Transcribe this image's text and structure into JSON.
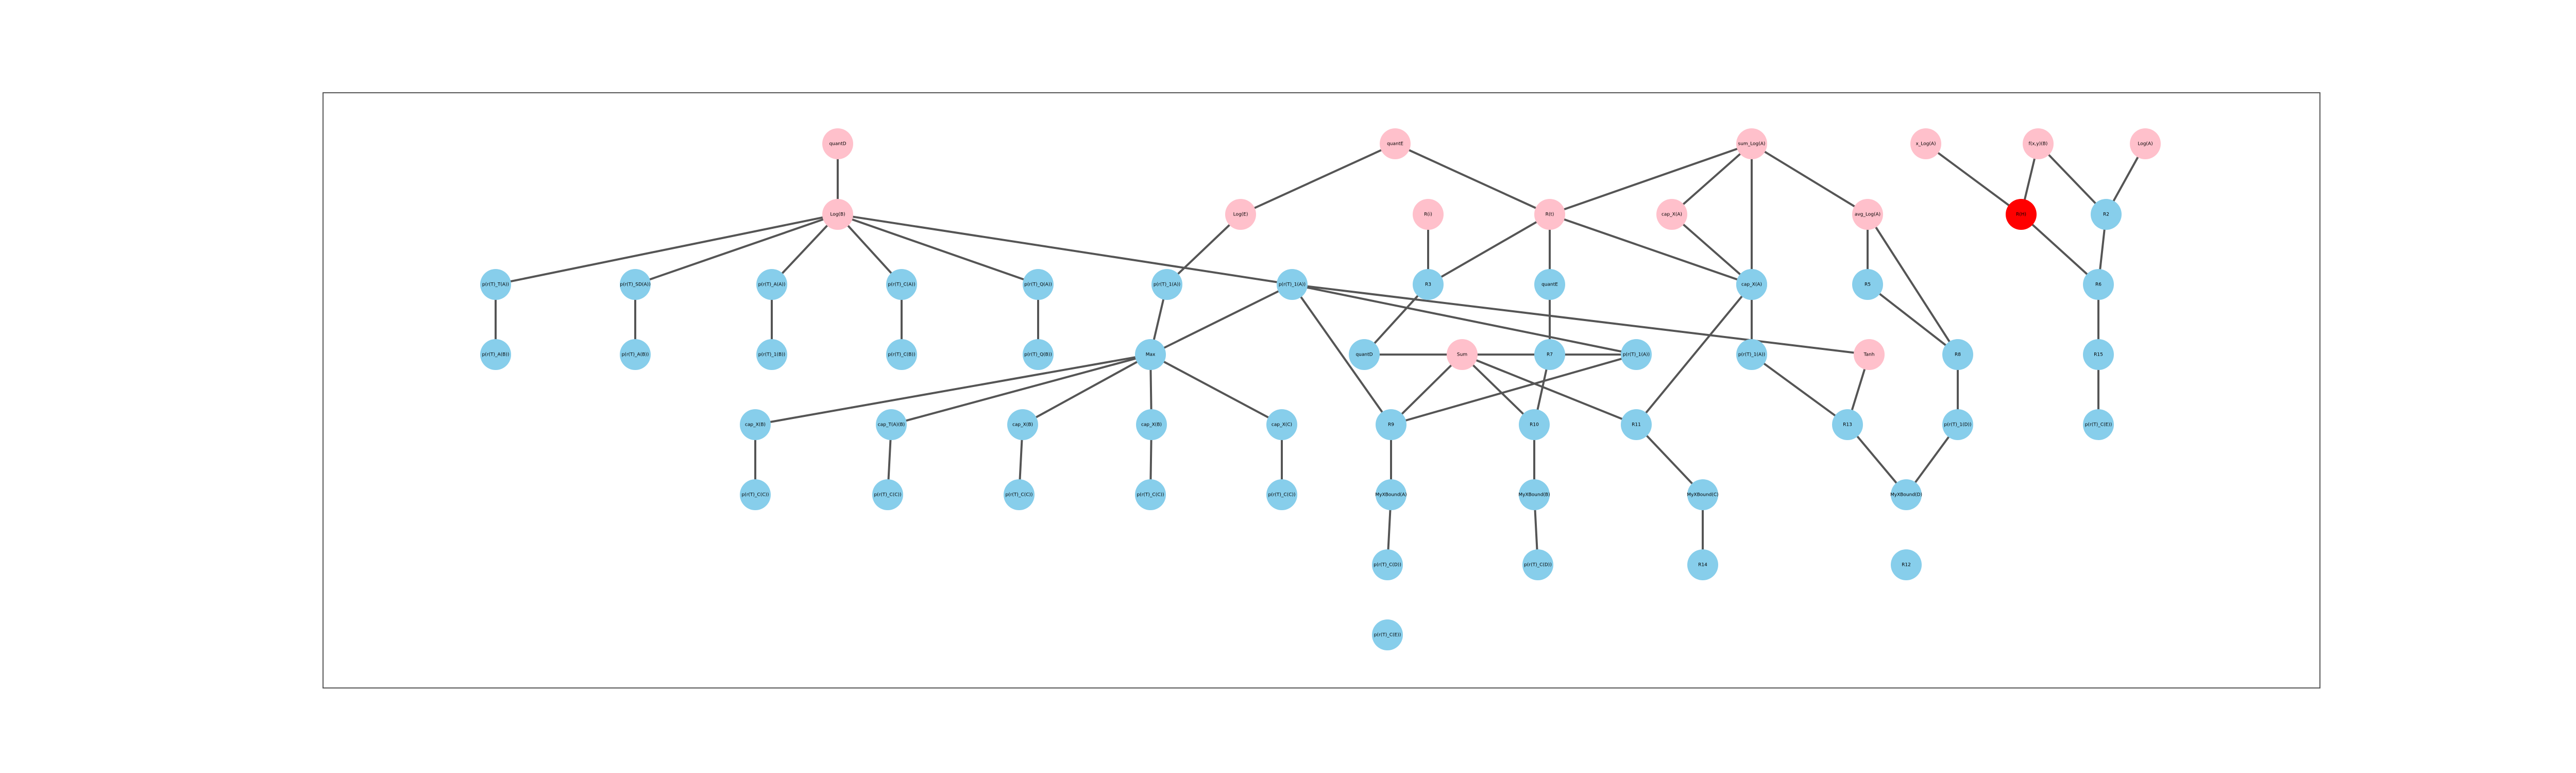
{
  "colors": {
    "input_node": "#ffc0cb",
    "intermediate_node": "#87ceeb",
    "output_node": "#ff0000",
    "edge": "#555555",
    "frame": "#555555"
  },
  "nodes": [
    {
      "id": "n1",
      "label": "quantD",
      "kind": "input_node"
    },
    {
      "id": "n2",
      "label": "Log(B)",
      "kind": "input_node"
    },
    {
      "id": "n3",
      "label": "quantE",
      "kind": "input_node"
    },
    {
      "id": "n4",
      "label": "Log(E)",
      "kind": "input_node"
    },
    {
      "id": "n5",
      "label": "R(i)",
      "kind": "input_node"
    },
    {
      "id": "n6",
      "label": "R(t)",
      "kind": "input_node"
    },
    {
      "id": "n7",
      "label": "sum_Log(A)",
      "kind": "input_node"
    },
    {
      "id": "n8",
      "label": "cap_X(A)",
      "kind": "input_node"
    },
    {
      "id": "n9",
      "label": "avg_Log(A)",
      "kind": "input_node"
    },
    {
      "id": "n10",
      "label": "x_Log(A)",
      "kind": "input_node"
    },
    {
      "id": "n11",
      "label": "f(x,y)(B)",
      "kind": "input_node"
    },
    {
      "id": "n12",
      "label": "Log(A)",
      "kind": "input_node"
    },
    {
      "id": "n13",
      "label": "R(H)",
      "kind": "output_node"
    },
    {
      "id": "n14",
      "label": "R2",
      "kind": "intermediate_node"
    },
    {
      "id": "n15",
      "label": "p(r(T)_T(A))",
      "kind": "intermediate_node"
    },
    {
      "id": "n16",
      "label": "p(r(T)_SD(A))",
      "kind": "intermediate_node"
    },
    {
      "id": "n17",
      "label": "p(r(T)_A(A))",
      "kind": "intermediate_node"
    },
    {
      "id": "n18",
      "label": "p(r(T)_C(A))",
      "kind": "intermediate_node"
    },
    {
      "id": "n19",
      "label": "p(r(T)_Q(A))",
      "kind": "intermediate_node"
    },
    {
      "id": "n20",
      "label": "p(r(T)_1(A))",
      "kind": "intermediate_node"
    },
    {
      "id": "n21",
      "label": "p(r(T)_1(A))",
      "kind": "intermediate_node"
    },
    {
      "id": "n22",
      "label": "R3",
      "kind": "intermediate_node"
    },
    {
      "id": "n23",
      "label": "quantE",
      "kind": "intermediate_node"
    },
    {
      "id": "n24",
      "label": "R4",
      "kind": "intermediate_node"
    },
    {
      "id": "n25",
      "label": "cap_X(A)",
      "kind": "intermediate_node"
    },
    {
      "id": "n26",
      "label": "R5",
      "kind": "intermediate_node"
    },
    {
      "id": "n27",
      "label": "p(r(T)_A(B))",
      "kind": "intermediate_node"
    },
    {
      "id": "n28",
      "label": "p(r(T)_A(B))",
      "kind": "intermediate_node"
    },
    {
      "id": "n29",
      "label": "p(r(T)_1(B))",
      "kind": "intermediate_node"
    },
    {
      "id": "n30",
      "label": "p(r(T)_C(B))",
      "kind": "intermediate_node"
    },
    {
      "id": "n31",
      "label": "p(r(T)_Q(B))",
      "kind": "intermediate_node"
    },
    {
      "id": "n32",
      "label": "Max",
      "kind": "intermediate_node"
    },
    {
      "id": "n33",
      "label": "quantD",
      "kind": "intermediate_node"
    },
    {
      "id": "n34",
      "label": "Sum",
      "kind": "input_node"
    },
    {
      "id": "n35",
      "label": "R6",
      "kind": "intermediate_node"
    },
    {
      "id": "n36",
      "label": "R7",
      "kind": "intermediate_node"
    },
    {
      "id": "n37",
      "label": "p(r(T)_1(A))",
      "kind": "intermediate_node"
    },
    {
      "id": "n38",
      "label": "Tanh",
      "kind": "input_node"
    },
    {
      "id": "n39",
      "label": "R8",
      "kind": "intermediate_node"
    },
    {
      "id": "n40",
      "label": "cap_X(B)",
      "kind": "intermediate_node"
    },
    {
      "id": "n41",
      "label": "cap_T(A)(B)",
      "kind": "intermediate_node"
    },
    {
      "id": "n42",
      "label": "cap_X(B)",
      "kind": "intermediate_node"
    },
    {
      "id": "n43",
      "label": "cap_X(B)",
      "kind": "intermediate_node"
    },
    {
      "id": "n44",
      "label": "cap_X(C)",
      "kind": "intermediate_node"
    },
    {
      "id": "n45",
      "label": "R9",
      "kind": "intermediate_node"
    },
    {
      "id": "n46",
      "label": "R10",
      "kind": "intermediate_node"
    },
    {
      "id": "n47",
      "label": "R11",
      "kind": "intermediate_node"
    },
    {
      "id": "n48",
      "label": "R12",
      "kind": "intermediate_node"
    },
    {
      "id": "n49",
      "label": "p(r(T)_1(A))",
      "kind": "intermediate_node"
    },
    {
      "id": "n50",
      "label": "R13",
      "kind": "intermediate_node"
    },
    {
      "id": "n51",
      "label": "p(r(T)_C(C))",
      "kind": "intermediate_node"
    },
    {
      "id": "n52",
      "label": "p(r(T)_C(C))",
      "kind": "intermediate_node"
    },
    {
      "id": "n53",
      "label": "p(r(T)_C(C))",
      "kind": "intermediate_node"
    },
    {
      "id": "n54",
      "label": "p(r(T)_C(C))",
      "kind": "intermediate_node"
    },
    {
      "id": "n55",
      "label": "p(r(T)_C(C))",
      "kind": "intermediate_node"
    },
    {
      "id": "n56",
      "label": "MyXBound(A)",
      "kind": "intermediate_node"
    },
    {
      "id": "n57",
      "label": "MyXBound(B)",
      "kind": "intermediate_node"
    },
    {
      "id": "n58",
      "label": "MyXBound(C)",
      "kind": "intermediate_node"
    },
    {
      "id": "n59",
      "label": "p(r(T)_C(D))",
      "kind": "intermediate_node"
    },
    {
      "id": "n60",
      "label": "p(r(T)_C(D))",
      "kind": "intermediate_node"
    },
    {
      "id": "n61",
      "label": "R14",
      "kind": "intermediate_node"
    },
    {
      "id": "n62",
      "label": "MyXBound(D)",
      "kind": "intermediate_node"
    },
    {
      "id": "n63",
      "label": "p(r(T)_1(D))",
      "kind": "intermediate_node"
    },
    {
      "id": "n64",
      "label": "R15",
      "kind": "intermediate_node"
    },
    {
      "id": "n65",
      "label": "p(r(T)_C(E))",
      "kind": "intermediate_node"
    },
    {
      "id": "n66",
      "label": "p(r(T)_C(E))",
      "kind": "intermediate_node"
    },
    {
      "id": "n67",
      "label": "p(r(T)_C(E))",
      "kind": "intermediate_node"
    },
    {
      "id": "n68",
      "label": "p(r(T)_C(E))",
      "kind": "intermediate_node"
    }
  ],
  "edges": [
    [
      "n1",
      "n2"
    ],
    [
      "n2",
      "n15"
    ],
    [
      "n2",
      "n16"
    ],
    [
      "n2",
      "n17"
    ],
    [
      "n2",
      "n18"
    ],
    [
      "n2",
      "n19"
    ],
    [
      "n2",
      "n21"
    ],
    [
      "n15",
      "n27"
    ],
    [
      "n16",
      "n28"
    ],
    [
      "n17",
      "n29"
    ],
    [
      "n18",
      "n30"
    ],
    [
      "n19",
      "n31"
    ],
    [
      "n4",
      "n20"
    ],
    [
      "n20",
      "n32"
    ],
    [
      "n21",
      "n32"
    ],
    [
      "n21",
      "n37"
    ],
    [
      "n21",
      "n38"
    ],
    [
      "n21",
      "n45"
    ],
    [
      "n32",
      "n40"
    ],
    [
      "n32",
      "n41"
    ],
    [
      "n32",
      "n42"
    ],
    [
      "n32",
      "n43"
    ],
    [
      "n32",
      "n44"
    ],
    [
      "n40",
      "n51"
    ],
    [
      "n41",
      "n52"
    ],
    [
      "n42",
      "n53"
    ],
    [
      "n43",
      "n54"
    ],
    [
      "n44",
      "n55"
    ],
    [
      "n3",
      "n4"
    ],
    [
      "n3",
      "n6"
    ],
    [
      "n5",
      "n22"
    ],
    [
      "n22",
      "n33"
    ],
    [
      "n33",
      "n37"
    ],
    [
      "n37",
      "n45"
    ],
    [
      "n45",
      "n56"
    ],
    [
      "n56",
      "n59"
    ],
    [
      "n6",
      "n22"
    ],
    [
      "n6",
      "n23"
    ],
    [
      "n6",
      "n24"
    ],
    [
      "n23",
      "n36"
    ],
    [
      "n36",
      "n46"
    ],
    [
      "n46",
      "n57"
    ],
    [
      "n57",
      "n60"
    ],
    [
      "n34",
      "n45"
    ],
    [
      "n34",
      "n46"
    ],
    [
      "n34",
      "n47"
    ],
    [
      "n24",
      "n47"
    ],
    [
      "n47",
      "n58"
    ],
    [
      "n58",
      "n61"
    ],
    [
      "n7",
      "n6"
    ],
    [
      "n7",
      "n8"
    ],
    [
      "n7",
      "n9"
    ],
    [
      "n7",
      "n25"
    ],
    [
      "n8",
      "n25"
    ],
    [
      "n25",
      "n49"
    ],
    [
      "n49",
      "n50"
    ],
    [
      "n9",
      "n26"
    ],
    [
      "n9",
      "n39"
    ],
    [
      "n26",
      "n39"
    ],
    [
      "n39",
      "n63"
    ],
    [
      "n63",
      "n62"
    ],
    [
      "n50",
      "n62"
    ],
    [
      "n38",
      "n50"
    ],
    [
      "n10",
      "n13"
    ],
    [
      "n11",
      "n13"
    ],
    [
      "n11",
      "n14"
    ],
    [
      "n12",
      "n14"
    ],
    [
      "n13",
      "n35"
    ],
    [
      "n14",
      "n35"
    ],
    [
      "n35",
      "n64"
    ],
    [
      "n64",
      "n65"
    ]
  ]
}
